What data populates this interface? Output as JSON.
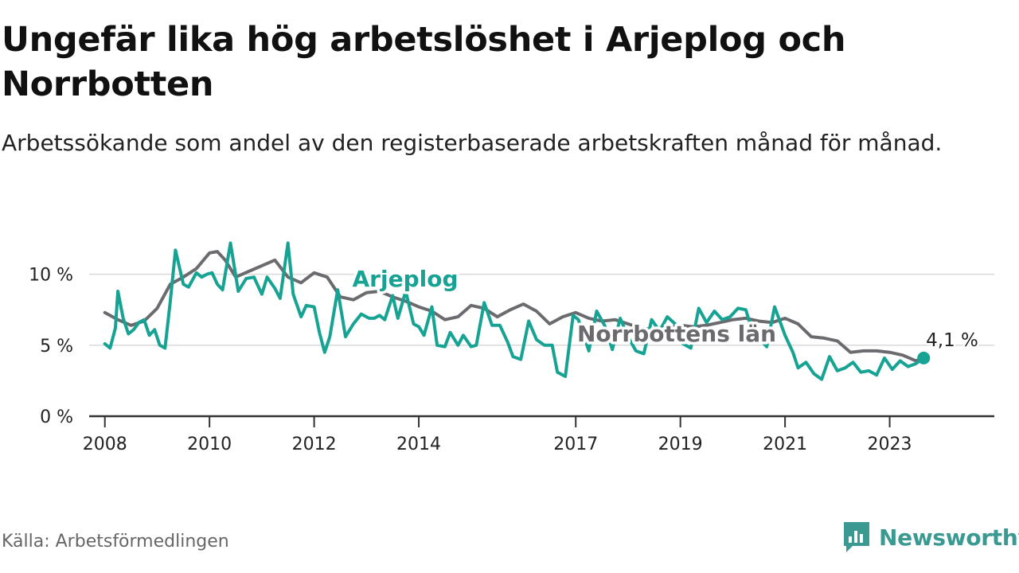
{
  "title": "Ungefär lika hög arbetslöshet i Arjeplog och Norrbotten",
  "subtitle": "Arbetssökande som andel av den registerbaserade arbetskraften månad för månad.",
  "source": "Källa: Arbetsförmedlingen",
  "brand": {
    "name": "Newsworthy",
    "icon": "newsworthy-logo-icon"
  },
  "colors": {
    "arjeplog": "#16a393",
    "norrbotten": "#6b6a6f",
    "grid": "#d9d9d9",
    "axis": "#333333"
  },
  "chart_data": {
    "type": "line",
    "title": "Ungefär lika hög arbetslöshet i Arjeplog och Norrbotten",
    "xlabel": "",
    "ylabel": "",
    "ylim": [
      0,
      12.5
    ],
    "yticks": [
      0,
      5,
      10
    ],
    "ytick_labels": [
      "0 %",
      "5 %",
      "10 %"
    ],
    "xticks": [
      2008,
      2010,
      2012,
      2014,
      2017,
      2019,
      2021,
      2023
    ],
    "xtick_labels": [
      "2008",
      "2010",
      "2012",
      "2014",
      "2017",
      "2019",
      "2021",
      "2023"
    ],
    "xlim": [
      2007.7,
      2025.0
    ],
    "series": [
      {
        "name": "Norrbottens län",
        "x": [
          2008.0,
          2008.25,
          2008.5,
          2008.75,
          2009.0,
          2009.25,
          2009.5,
          2009.75,
          2010.0,
          2010.15,
          2010.3,
          2010.5,
          2010.75,
          2011.0,
          2011.25,
          2011.5,
          2011.75,
          2012.0,
          2012.25,
          2012.5,
          2012.75,
          2013.0,
          2013.25,
          2013.5,
          2013.75,
          2014.0,
          2014.25,
          2014.5,
          2014.75,
          2015.0,
          2015.25,
          2015.5,
          2015.75,
          2016.0,
          2016.25,
          2016.5,
          2016.75,
          2017.0,
          2017.25,
          2017.5,
          2017.75,
          2018.0,
          2018.25,
          2018.5,
          2018.75,
          2019.0,
          2019.25,
          2019.5,
          2019.75,
          2020.0,
          2020.25,
          2020.5,
          2020.75,
          2021.0,
          2021.25,
          2021.5,
          2021.75,
          2022.0,
          2022.25,
          2022.5,
          2022.75,
          2023.0,
          2023.25,
          2023.5,
          2023.65
        ],
        "values": [
          7.3,
          6.8,
          6.4,
          6.7,
          7.6,
          9.3,
          9.8,
          10.4,
          11.5,
          11.6,
          11.0,
          9.8,
          10.2,
          10.6,
          11.0,
          9.8,
          9.4,
          10.1,
          9.8,
          8.4,
          8.2,
          8.7,
          8.8,
          8.4,
          8.1,
          7.7,
          7.4,
          6.8,
          7.0,
          7.8,
          7.6,
          7.0,
          7.5,
          7.9,
          7.4,
          6.5,
          7.0,
          7.3,
          6.9,
          6.7,
          6.8,
          6.5,
          6.2,
          6.1,
          6.3,
          6.4,
          6.3,
          6.4,
          6.6,
          6.8,
          6.9,
          6.7,
          6.6,
          6.9,
          6.5,
          5.6,
          5.5,
          5.3,
          4.5,
          4.6,
          4.6,
          4.5,
          4.3,
          3.9,
          4.1
        ]
      },
      {
        "name": "Arjeplog",
        "x": [
          2008.0,
          2008.1,
          2008.2,
          2008.25,
          2008.35,
          2008.45,
          2008.55,
          2008.65,
          2008.75,
          2008.85,
          2008.95,
          2009.05,
          2009.15,
          2009.25,
          2009.35,
          2009.5,
          2009.6,
          2009.75,
          2009.85,
          2009.95,
          2010.05,
          2010.15,
          2010.25,
          2010.4,
          2010.55,
          2010.7,
          2010.85,
          2011.0,
          2011.1,
          2011.25,
          2011.35,
          2011.5,
          2011.6,
          2011.75,
          2011.85,
          2012.0,
          2012.1,
          2012.2,
          2012.3,
          2012.45,
          2012.6,
          2012.75,
          2012.9,
          2013.05,
          2013.15,
          2013.25,
          2013.35,
          2013.5,
          2013.6,
          2013.75,
          2013.9,
          2014.0,
          2014.1,
          2014.25,
          2014.35,
          2014.5,
          2014.6,
          2014.75,
          2014.85,
          2015.0,
          2015.1,
          2015.25,
          2015.4,
          2015.55,
          2015.7,
          2015.8,
          2015.95,
          2016.1,
          2016.25,
          2016.4,
          2016.55,
          2016.65,
          2016.8,
          2016.95,
          2017.05,
          2017.15,
          2017.25,
          2017.4,
          2017.55,
          2017.7,
          2017.85,
          2018.0,
          2018.15,
          2018.3,
          2018.45,
          2018.6,
          2018.75,
          2018.9,
          2019.05,
          2019.2,
          2019.35,
          2019.5,
          2019.65,
          2019.8,
          2019.95,
          2020.1,
          2020.25,
          2020.35,
          2020.5,
          2020.65,
          2020.8,
          2021.0,
          2021.15,
          2021.25,
          2021.4,
          2021.55,
          2021.7,
          2021.85,
          2022.0,
          2022.15,
          2022.3,
          2022.45,
          2022.6,
          2022.75,
          2022.9,
          2023.05,
          2023.2,
          2023.35,
          2023.5,
          2023.65
        ],
        "values": [
          5.1,
          4.8,
          6.2,
          8.8,
          6.9,
          5.8,
          6.1,
          6.6,
          6.8,
          5.7,
          6.1,
          5.0,
          4.8,
          8.1,
          11.7,
          9.3,
          9.1,
          10.1,
          9.8,
          10.0,
          10.1,
          9.3,
          8.9,
          12.2,
          8.8,
          9.7,
          9.8,
          8.6,
          9.8,
          9.0,
          8.3,
          12.2,
          8.6,
          7.0,
          7.8,
          7.7,
          5.9,
          4.5,
          5.6,
          8.9,
          5.6,
          6.5,
          7.2,
          6.9,
          6.9,
          7.1,
          6.8,
          8.5,
          6.9,
          8.8,
          6.5,
          6.3,
          5.7,
          7.7,
          5.0,
          4.9,
          5.9,
          5.0,
          5.7,
          4.9,
          5.0,
          8.0,
          6.4,
          6.4,
          5.2,
          4.2,
          4.0,
          6.7,
          5.4,
          5.0,
          5.0,
          3.1,
          2.8,
          7.1,
          6.8,
          5.7,
          4.6,
          7.4,
          6.4,
          4.7,
          6.9,
          5.6,
          4.6,
          4.4,
          6.8,
          6.0,
          7.0,
          6.5,
          5.1,
          4.8,
          7.6,
          6.6,
          7.4,
          6.8,
          7.0,
          7.6,
          7.5,
          6.3,
          5.5,
          4.9,
          7.7,
          5.7,
          4.5,
          3.4,
          3.8,
          3.0,
          2.6,
          4.2,
          3.2,
          3.4,
          3.8,
          3.1,
          3.2,
          2.9,
          4.1,
          3.3,
          3.9,
          3.5,
          3.7,
          4.1
        ]
      }
    ],
    "annotations": [
      {
        "label": "Arjeplog",
        "series": "Arjeplog"
      },
      {
        "label": "Norrbottens län",
        "series": "Norrbottens län"
      },
      {
        "label": "4,1 %",
        "series": "Arjeplog",
        "note": "latest value"
      }
    ]
  }
}
